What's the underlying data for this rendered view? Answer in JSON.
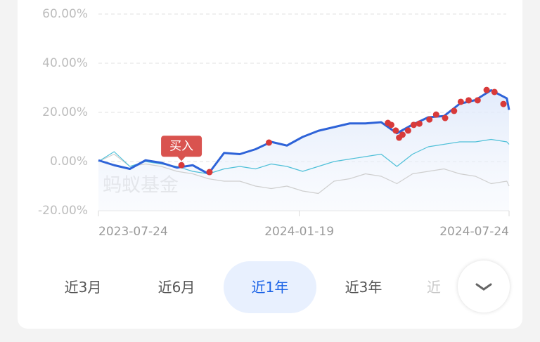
{
  "chart_data": {
    "type": "line",
    "x": [
      "2023-07-24",
      "2023-08-07",
      "2023-08-21",
      "2023-09-04",
      "2023-09-18",
      "2023-10-02",
      "2023-10-16",
      "2023-10-30",
      "2023-11-13",
      "2023-11-27",
      "2023-12-11",
      "2023-12-25",
      "2024-01-08",
      "2024-01-22",
      "2024-02-05",
      "2024-02-19",
      "2024-03-04",
      "2024-03-18",
      "2024-04-01",
      "2024-04-15",
      "2024-04-29",
      "2024-05-13",
      "2024-05-27",
      "2024-06-10",
      "2024-06-24",
      "2024-07-08",
      "2024-07-22",
      "2024-07-24"
    ],
    "series": [
      {
        "color": "#cfcfcf",
        "values": [
          0,
          3,
          -2,
          -1,
          -2,
          -4,
          -5,
          -7,
          -8,
          -8,
          -10,
          -11,
          -10,
          -12,
          -13,
          -8,
          -7,
          -5,
          -6,
          -9,
          -5,
          -4,
          -3,
          -5,
          -6,
          -9,
          -8,
          -10
        ]
      },
      {
        "color": "#4fc0d8",
        "values": [
          0,
          4,
          -2,
          0,
          -1,
          -2,
          -4,
          -5,
          -3,
          -2,
          -3,
          -1,
          -2,
          -4,
          -2,
          0,
          1,
          2,
          3,
          -2,
          3,
          6,
          7,
          8,
          8,
          9,
          8,
          7
        ]
      },
      {
        "color": "#2e63d8",
        "values": [
          0.5,
          -1.5,
          -3,
          0.5,
          -0.5,
          -2.5,
          -1.5,
          -5,
          3.5,
          3,
          5,
          8,
          6.5,
          10,
          12.5,
          14,
          15.5,
          15.5,
          16,
          11.5,
          15,
          18,
          18.5,
          23.5,
          25,
          29,
          25.7,
          21
        ]
      }
    ],
    "markers": {
      "color": "#d83a3a",
      "x": [
        "2023-10-31",
        "2023-12-23",
        "2024-04-07",
        "2024-04-10",
        "2024-04-14",
        "2024-04-17",
        "2024-04-20",
        "2024-04-25",
        "2024-04-30",
        "2024-05-05",
        "2024-05-14",
        "2024-05-20",
        "2024-05-28",
        "2024-06-05",
        "2024-06-11",
        "2024-06-18",
        "2024-06-26",
        "2024-07-04",
        "2024-07-11",
        "2024-07-19"
      ],
      "values": [
        -4.3,
        7.7,
        15.7,
        14.9,
        12.6,
        9.7,
        10.9,
        12.6,
        14.9,
        15.4,
        17.1,
        19.1,
        17.7,
        20.6,
        24.3,
        24.9,
        24.9,
        29.1,
        28.3,
        23.4
      ]
    },
    "annotation": {
      "text": "买入",
      "x": "2023-10-06",
      "value": -1.5
    },
    "watermark": "蚂蚁基金",
    "xlim": [
      "2023-07-24",
      "2024-07-24"
    ],
    "xticks": [
      "2023-07-24",
      "2024-01-19",
      "2024-07-24"
    ],
    "ylim": [
      -20,
      60
    ],
    "yticks": [
      {
        "value": -20,
        "label": "-20.00%"
      },
      {
        "value": 0,
        "label": "0.00%"
      },
      {
        "value": 20,
        "label": "20.00%"
      },
      {
        "value": 40,
        "label": "40.00%"
      },
      {
        "value": 60,
        "label": "60.00%"
      }
    ],
    "grid": true,
    "periods": [
      "近3月",
      "近6月",
      "近1年",
      "近3年",
      "近"
    ],
    "selected_period": 2
  }
}
